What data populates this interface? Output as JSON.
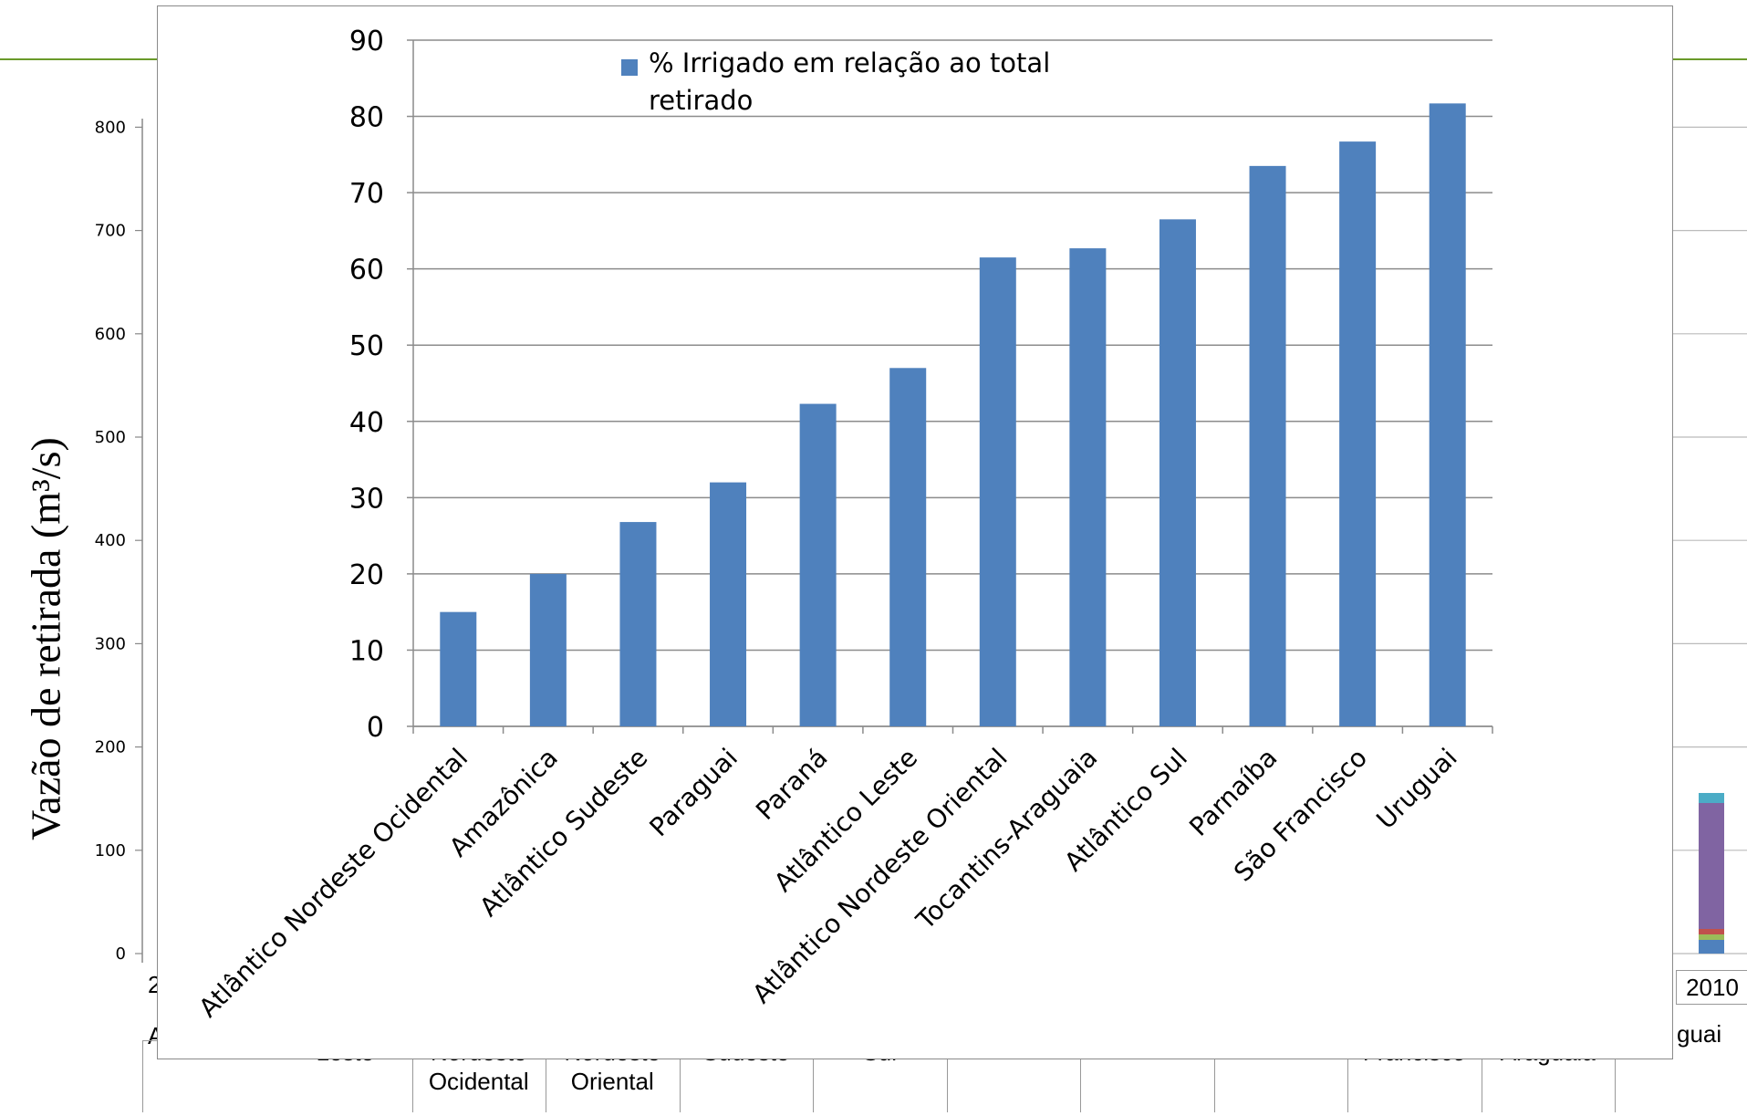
{
  "background_chart": {
    "ylabel": "Vazão de retirada (m³/s)",
    "y_ticks": [
      "0",
      "100",
      "200",
      "300",
      "400",
      "500",
      "600",
      "700",
      "800"
    ],
    "year_label": "2010",
    "left_fragments": [
      "2",
      "A"
    ],
    "right_fragment": "guai",
    "table_cells": [
      {
        "line1": "Leste",
        "line2": ""
      },
      {
        "line1": "Nordeste",
        "line2": "Ocidental"
      },
      {
        "line1": "Nordeste",
        "line2": "Oriental"
      },
      {
        "line1": "Sudeste",
        "line2": ""
      },
      {
        "line1": "Sul",
        "line2": ""
      },
      {
        "line1": "",
        "line2": ""
      },
      {
        "line1": "",
        "line2": ""
      },
      {
        "line1": "",
        "line2": ""
      },
      {
        "line1": "Francisco",
        "line2": ""
      },
      {
        "line1": "Araguaia",
        "line2": ""
      }
    ],
    "stack_colors": [
      "#4bacc6",
      "#8064a2",
      "#9bbb59",
      "#c0504d",
      "#4f81bd"
    ]
  },
  "legend": {
    "label_line1": "% Irrigado em relação ao total",
    "label_line2": "retirado",
    "swatch_color": "#4f81bd"
  },
  "chart_data": {
    "type": "bar",
    "categories": [
      "Atlântico Nordeste Ocidental",
      "Amazônica",
      "Atlântico Sudeste",
      "Paraguai",
      "Paraná",
      "Atlântico Leste",
      "Atlântico Nordeste Oriental",
      "Tocantins-Araguaia",
      "Atlântico Sul",
      "Parnaíba",
      "São Francisco",
      "Uruguai"
    ],
    "series": [
      {
        "name": "% Irrigado em relação ao total retirado",
        "values": [
          15,
          20,
          26.8,
          32,
          42.3,
          47,
          61.5,
          62.7,
          66.5,
          73.5,
          76.7,
          81.7
        ]
      }
    ],
    "y_ticks": [
      "0",
      "10",
      "20",
      "30",
      "40",
      "50",
      "60",
      "70",
      "80",
      "90"
    ],
    "ylim": [
      0,
      90
    ],
    "grid": true,
    "legend_position": "top-left",
    "bar_color": "#4f81bd"
  }
}
